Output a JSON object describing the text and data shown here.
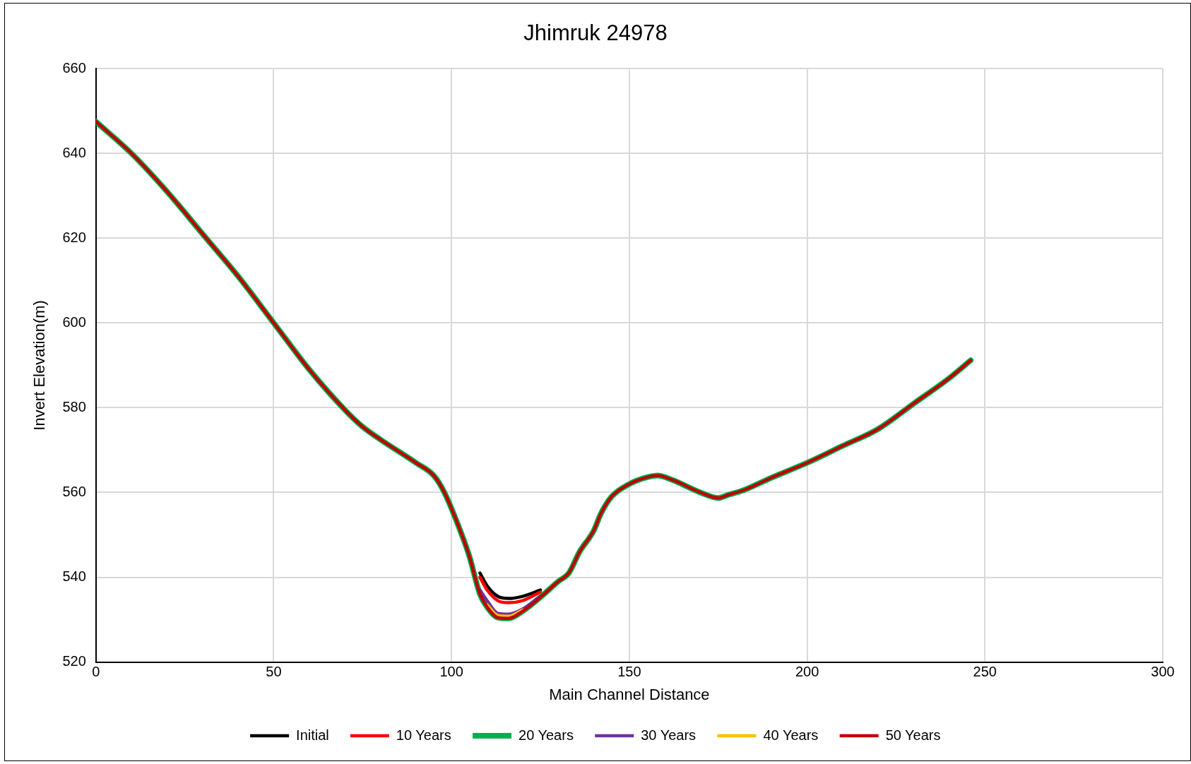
{
  "chart_data": {
    "type": "line",
    "title": "Jhimruk 24978",
    "xlabel": "Main Channel Distance",
    "ylabel": "Invert Elevation(m)",
    "x": [
      0,
      10,
      20,
      30,
      40,
      50,
      60,
      70,
      75,
      80,
      90,
      95,
      98,
      102,
      105,
      108,
      110,
      113,
      116,
      120,
      125,
      130,
      133,
      136,
      140,
      142,
      145,
      150,
      155,
      158,
      162,
      170,
      175,
      178,
      182,
      190,
      200,
      210,
      220,
      230,
      240,
      246
    ],
    "series": [
      {
        "name": "Initial",
        "color": "#000000",
        "values": [
          null,
          null,
          null,
          null,
          null,
          null,
          null,
          null,
          null,
          null,
          null,
          null,
          null,
          null,
          null,
          541,
          538,
          535.5,
          535,
          535.5,
          537,
          null,
          null,
          null,
          null,
          null,
          null,
          null,
          null,
          null,
          null,
          null,
          null,
          null,
          null,
          null,
          null,
          null,
          null,
          null,
          null,
          null
        ]
      },
      {
        "name": "10 Years",
        "color": "#ff0000",
        "values": [
          null,
          null,
          null,
          null,
          null,
          null,
          null,
          null,
          null,
          null,
          null,
          null,
          null,
          null,
          null,
          540,
          537,
          534.5,
          534,
          534.5,
          536.5,
          null,
          null,
          null,
          null,
          null,
          null,
          null,
          null,
          null,
          null,
          null,
          null,
          null,
          null,
          null,
          null,
          null,
          null,
          null,
          null,
          null
        ]
      },
      {
        "name": "20 Years",
        "color": "#00b050",
        "values": [
          647.5,
          640,
          631,
          621,
          611,
          600,
          589,
          579.5,
          575.5,
          572.5,
          567,
          564,
          560,
          552,
          545,
          536,
          533,
          530.5,
          530.3,
          532,
          535.3,
          539,
          541,
          546,
          551,
          555,
          559,
          562,
          563.6,
          564,
          563,
          560,
          558.7,
          559.5,
          560.5,
          563.5,
          567,
          571,
          575,
          581,
          587,
          591.2
        ]
      },
      {
        "name": "30 Years",
        "color": "#7030a0",
        "values": [
          null,
          null,
          null,
          null,
          null,
          null,
          null,
          null,
          null,
          null,
          null,
          null,
          null,
          null,
          null,
          537,
          534.5,
          531.5,
          531.3,
          532.5,
          535.5,
          null,
          null,
          null,
          null,
          null,
          null,
          null,
          null,
          null,
          null,
          null,
          null,
          null,
          null,
          null,
          null,
          null,
          null,
          null,
          null,
          null
        ]
      },
      {
        "name": "40 Years",
        "color": "#ffc000",
        "values": [
          null,
          null,
          null,
          null,
          null,
          null,
          null,
          null,
          null,
          null,
          null,
          null,
          null,
          null,
          null,
          null,
          533.5,
          531,
          530.8,
          532.3,
          null,
          null,
          null,
          null,
          null,
          null,
          null,
          null,
          null,
          null,
          null,
          null,
          null,
          null,
          null,
          null,
          null,
          null,
          null,
          null,
          null,
          null
        ]
      },
      {
        "name": "50 Years",
        "color": "#c00000",
        "values": [
          647.5,
          640,
          631,
          621,
          611,
          600,
          589,
          579.5,
          575.5,
          572.5,
          567,
          564,
          560,
          552,
          545,
          536,
          533,
          530.5,
          530.3,
          532,
          535.3,
          539,
          541,
          546,
          551,
          555,
          559,
          562,
          563.6,
          564,
          563,
          560,
          558.7,
          559.5,
          560.5,
          563.5,
          567,
          571,
          575,
          581,
          587,
          591.2
        ]
      }
    ],
    "xlim": [
      0,
      300
    ],
    "xticks": [
      0,
      50,
      100,
      150,
      200,
      250,
      300
    ],
    "ylim": [
      520,
      660
    ],
    "yticks": [
      520,
      540,
      560,
      580,
      600,
      620,
      640,
      660
    ],
    "grid": true,
    "legend": "bottom",
    "marker": "none",
    "line_style": "solid"
  }
}
